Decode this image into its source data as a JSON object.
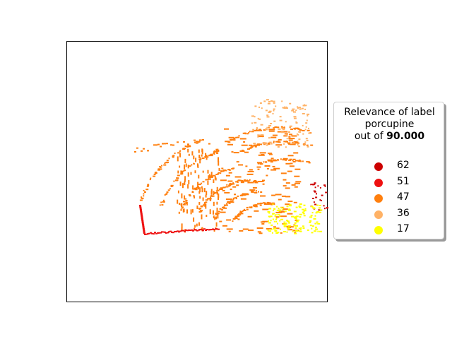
{
  "chart_data": {
    "type": "scatter",
    "title": "",
    "xlabel": "",
    "ylabel": "",
    "x_ticks": [],
    "y_ticks": [],
    "grid": false,
    "legend": {
      "placement": "right, outside axes",
      "title_line1": "Relevance of label",
      "title_line2": "porcupine",
      "title_line3_prefix": "out of ",
      "title_line3_value": "90.000",
      "entries": [
        {
          "label": "62",
          "color": "#cc0000"
        },
        {
          "label": "51",
          "color": "#ee1111"
        },
        {
          "label": "47",
          "color": "#ff7f0e"
        },
        {
          "label": "36",
          "color": "#ffb266"
        },
        {
          "label": "17",
          "color": "#ffff00"
        }
      ]
    },
    "series": [
      {
        "relevance": 62,
        "color": "#cc0000",
        "points_described": "small cluster at far right edge, mid-height"
      },
      {
        "relevance": 51,
        "color": "#ee1111",
        "points_described": "L-shaped stroke at lower-left of object"
      },
      {
        "relevance": 47,
        "color": "#ff7f0e",
        "points_described": "dense arcs across the main body"
      },
      {
        "relevance": 36,
        "color": "#ffb266",
        "points_described": "upper-right sparse patch"
      },
      {
        "relevance": 17,
        "color": "#ffff00",
        "points_described": "lower-right blob"
      }
    ]
  }
}
